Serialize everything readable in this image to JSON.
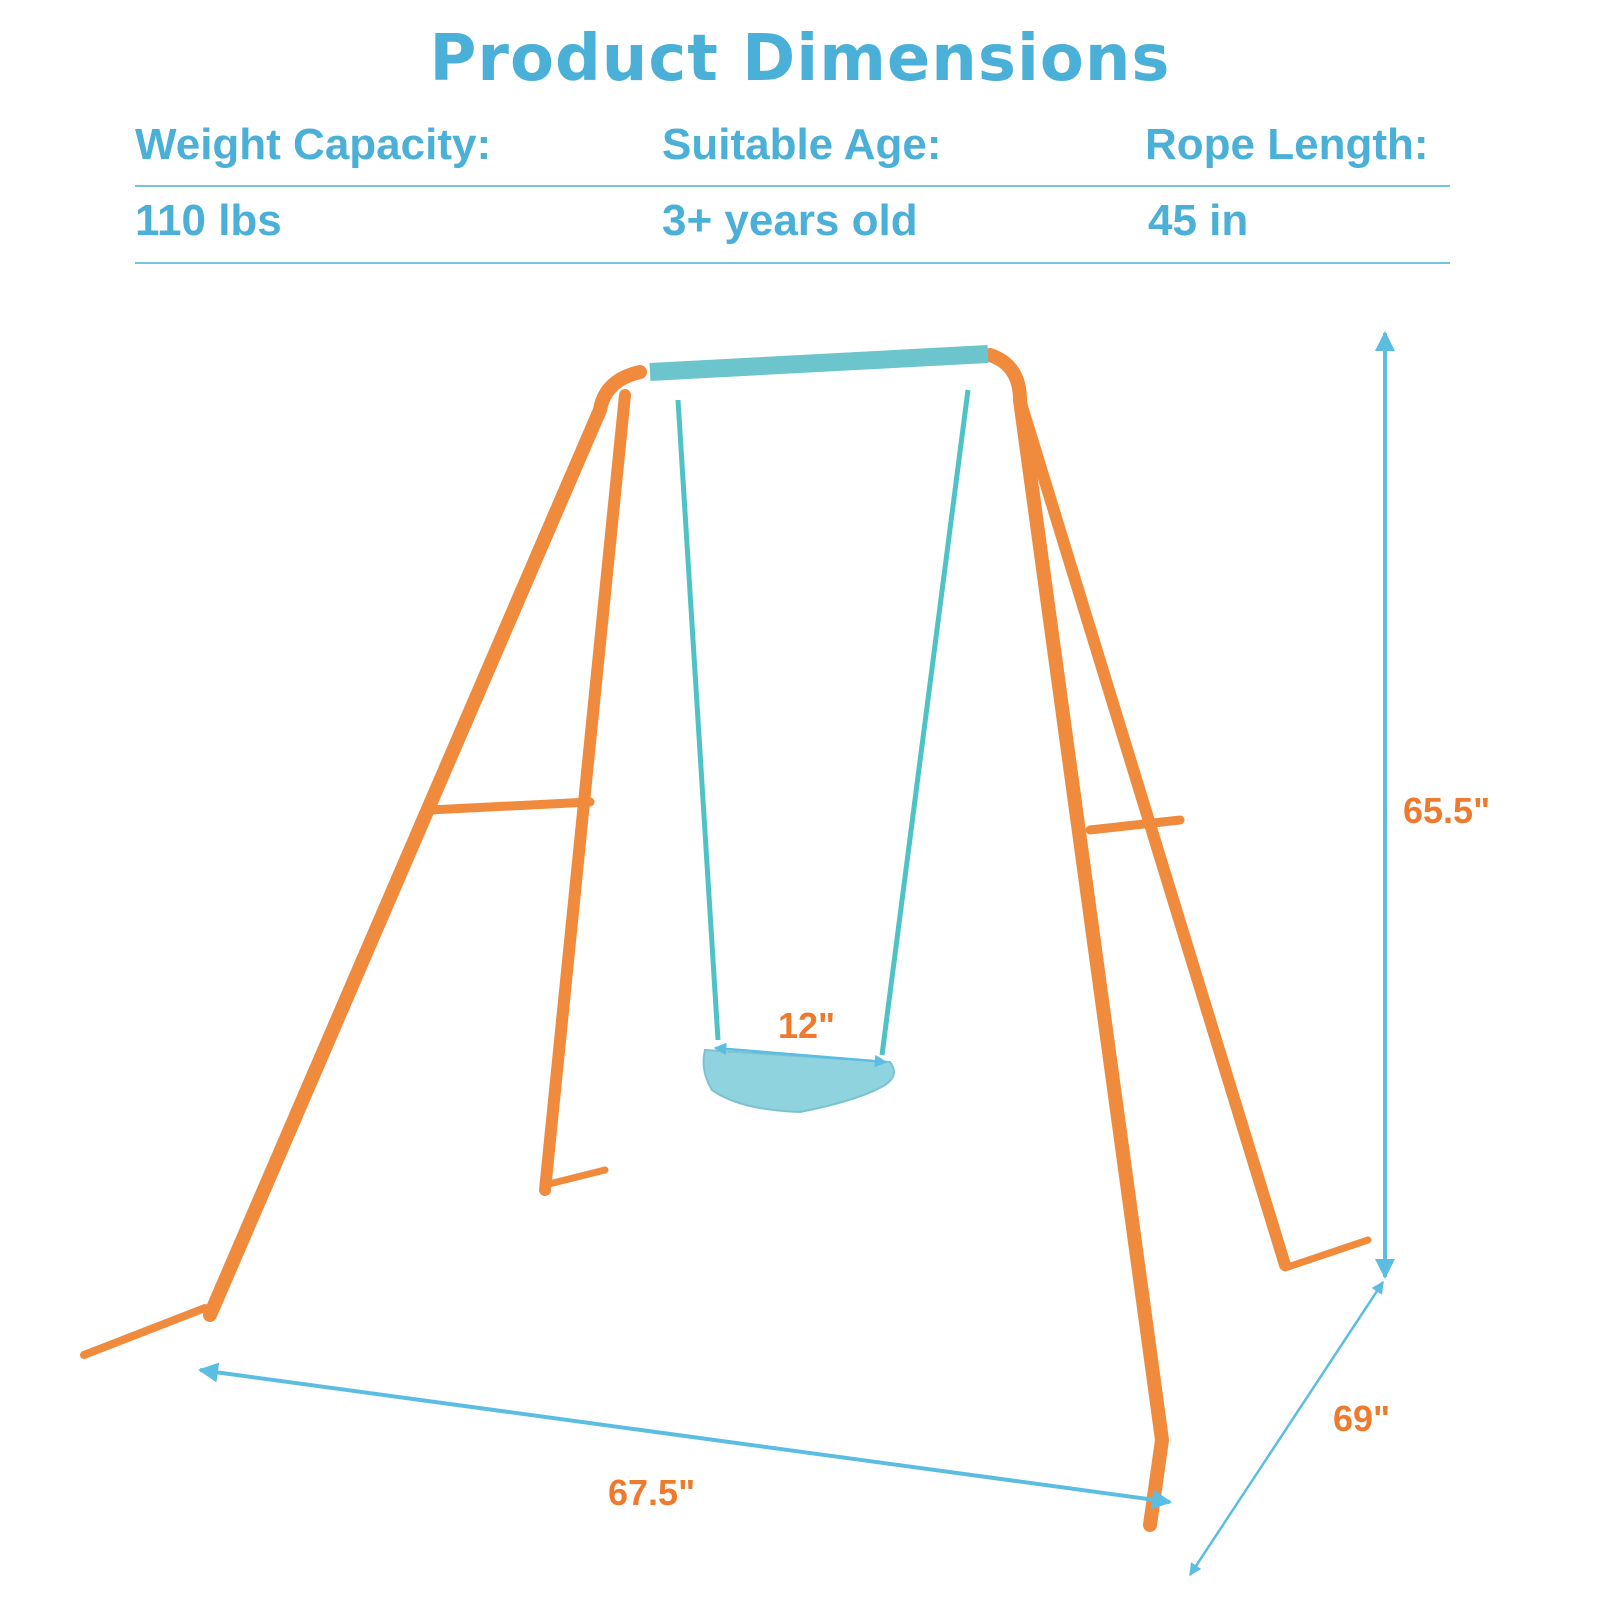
{
  "title": "Product Dimensions",
  "specs": [
    {
      "label": "Weight Capacity:",
      "value": "110 lbs"
    },
    {
      "label": "Suitable Age:",
      "value": "3+ years old"
    },
    {
      "label": "Rope Length:",
      "value": "45 in"
    }
  ],
  "dimensions": {
    "height": "65.5\"",
    "depth": "69\"",
    "width": "67.5\"",
    "seat_width": "12\""
  },
  "colors": {
    "accent_blue": "#4bb0d8",
    "frame_orange": "#f08a3c",
    "seat_teal": "#8fd3df",
    "label_orange": "#ee7a2e"
  }
}
